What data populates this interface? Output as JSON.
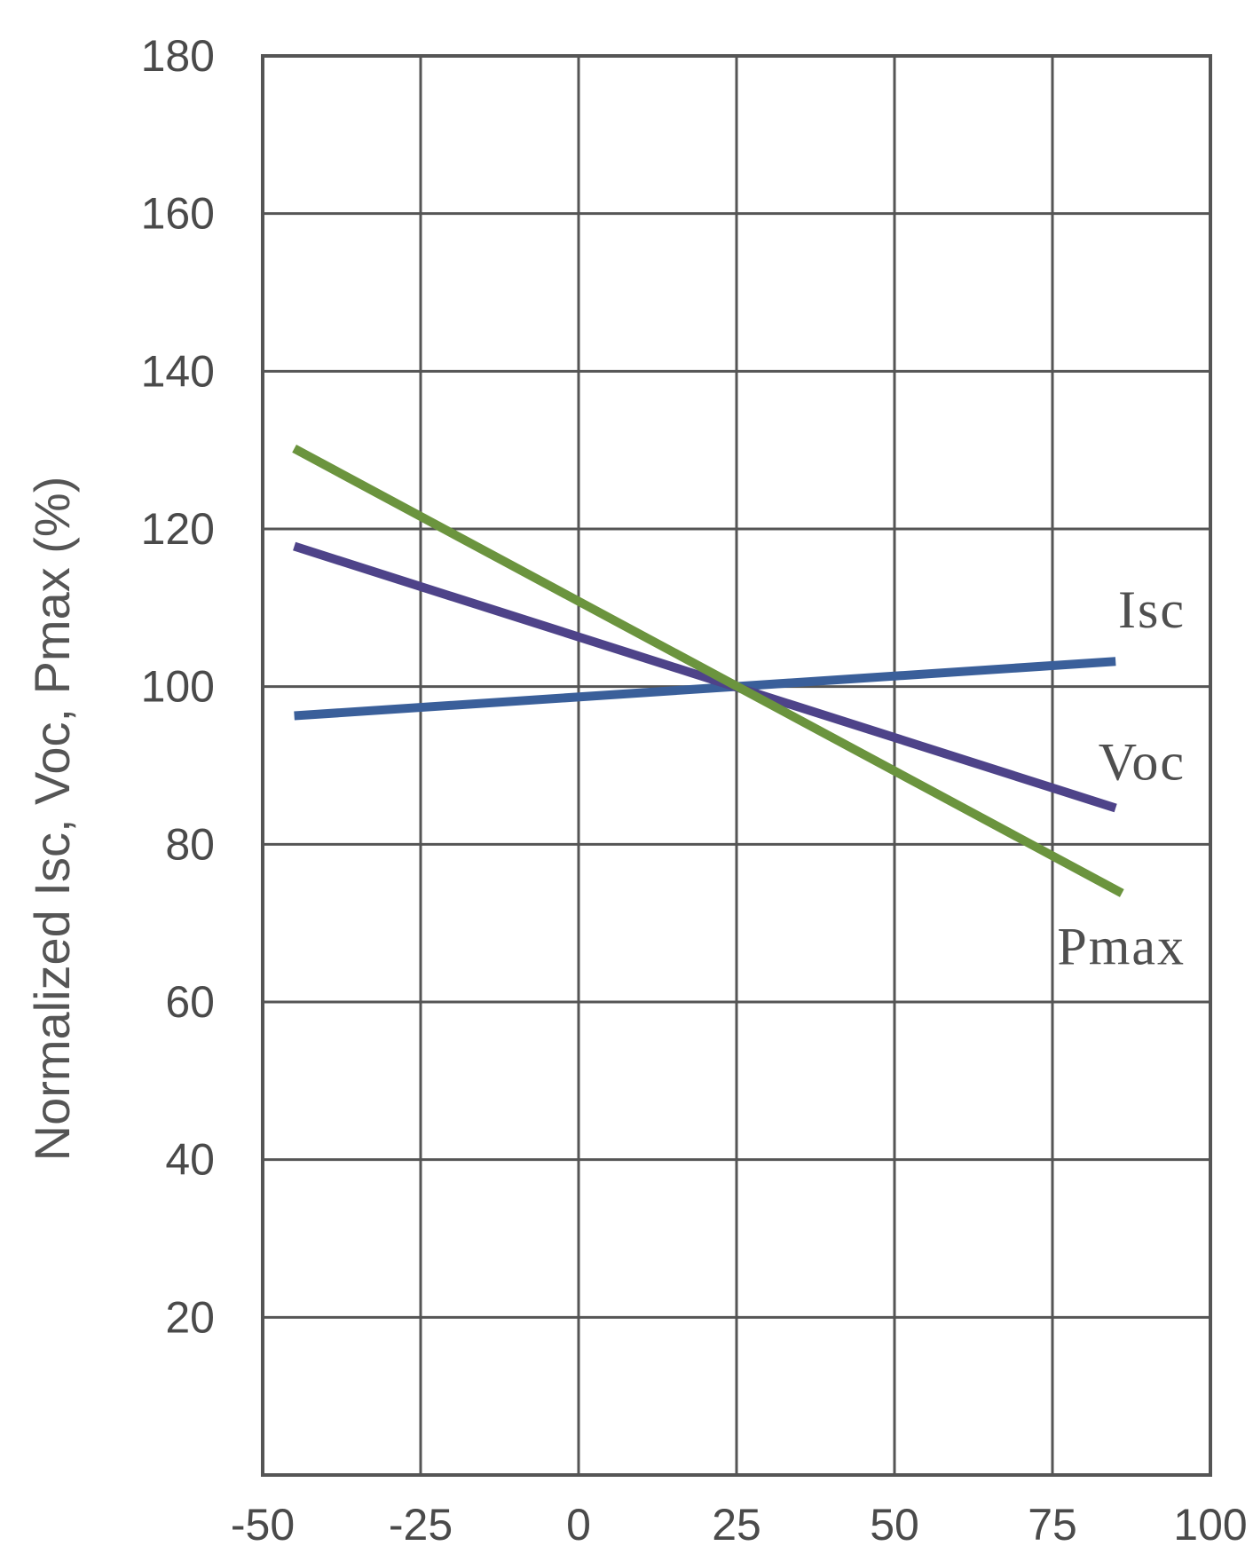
{
  "chart_data": {
    "type": "line",
    "title": "",
    "xlabel": "",
    "ylabel": "Normalized Isc, Voc, Pmax (%)",
    "xlim": [
      -50,
      100
    ],
    "ylim": [
      0,
      180
    ],
    "x_ticks": [
      -50,
      -25,
      0,
      25,
      50,
      75,
      100
    ],
    "y_ticks": [
      20,
      40,
      60,
      80,
      100,
      120,
      140,
      160,
      180
    ],
    "grid": true,
    "series": [
      {
        "name": "Isc",
        "x": [
          -45,
          85
        ],
        "values": [
          96.3,
          103.2
        ],
        "color": "#3a5f9a"
      },
      {
        "name": "Voc",
        "x": [
          -45,
          85
        ],
        "values": [
          117.8,
          84.6
        ],
        "color": "#4e4389"
      },
      {
        "name": "Pmax",
        "x": [
          -45,
          86
        ],
        "values": [
          130.2,
          73.8
        ],
        "color": "#6b943e"
      }
    ]
  }
}
